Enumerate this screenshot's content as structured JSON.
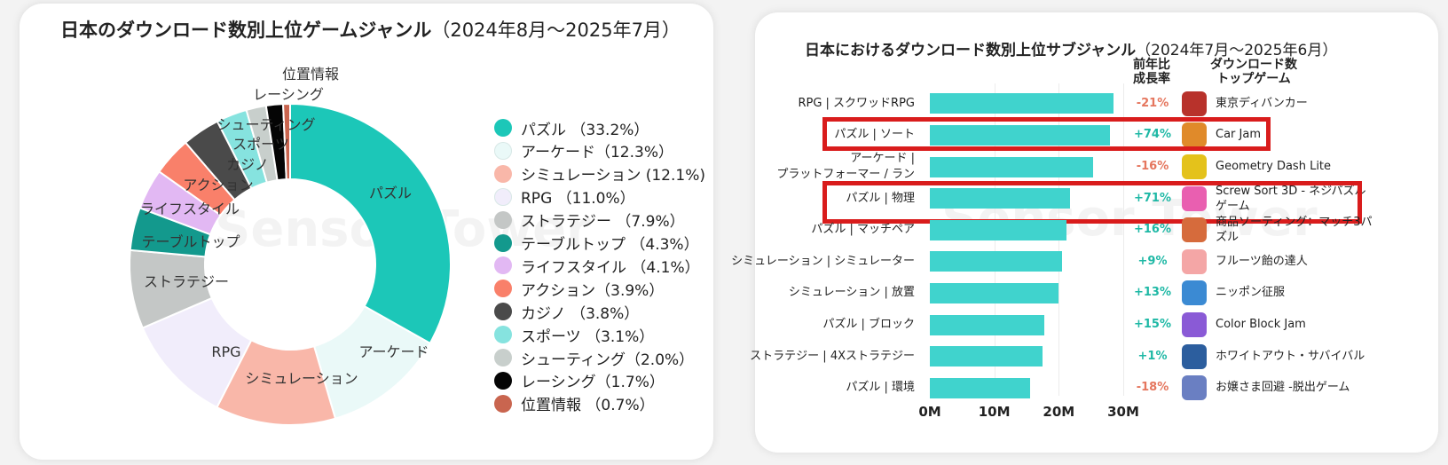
{
  "left_chart": {
    "title": "日本のダウンロード数別上位ゲームジャンル",
    "subtitle": "（2024年8月～2025年7月）",
    "watermark": "Sensor Tower"
  },
  "right_chart": {
    "title": "日本におけるダウンロード数別上位サブジャンル",
    "subtitle": "（2024年7月～2025年6月）",
    "watermark": "Sensor Tower",
    "col_growth": "前年比\n成長率",
    "col_game": "ダウンロード数\nトップゲーム"
  },
  "chart_data": [
    {
      "type": "pie",
      "donut": true,
      "title": "日本のダウンロード数別上位ゲームジャンル（2024年8月～2025年7月）",
      "legend_position": "right",
      "slices": [
        {
          "name": "パズル",
          "value": 33.2,
          "legend": "パズル （33.2%）",
          "color": "#1cc7b8",
          "label": "パズル"
        },
        {
          "name": "アーケード",
          "value": 12.3,
          "legend": "アーケード（12.3%）",
          "color": "#eaf9f8",
          "label": "アーケード"
        },
        {
          "name": "シミュレーション",
          "value": 12.1,
          "legend": "シミュレーション (12.1%)",
          "color": "#f9b7a9",
          "label": "シミュレーション"
        },
        {
          "name": "RPG",
          "value": 11.0,
          "legend": "RPG （11.0%）",
          "color": "#f1edfb",
          "label": "RPG"
        },
        {
          "name": "ストラテジー",
          "value": 7.9,
          "legend": "ストラテジー （7.9%）",
          "color": "#c4c7c6",
          "label": "ストラテジー"
        },
        {
          "name": "テーブルトップ",
          "value": 4.3,
          "legend": "テーブルトップ （4.3%）",
          "color": "#13998d",
          "label": "テーブルトップ"
        },
        {
          "name": "ライフスタイル",
          "value": 4.1,
          "legend": "ライフスタイル （4.1%）",
          "color": "#e2b8f3",
          "label": "ライフスタイル"
        },
        {
          "name": "アクション",
          "value": 3.9,
          "legend": "アクション（3.9%）",
          "color": "#f9806a",
          "label": "アクション"
        },
        {
          "name": "カジノ",
          "value": 3.8,
          "legend": "カジノ （3.8%）",
          "color": "#4a4a4a",
          "label": "カジノ"
        },
        {
          "name": "スポーツ",
          "value": 3.1,
          "legend": "スポーツ （3.1%）",
          "color": "#86e3df",
          "label": "スポーツ"
        },
        {
          "name": "シューティング",
          "value": 2.0,
          "legend": "シューティング（2.0%）",
          "color": "#c8cfcc",
          "label": "シューティング"
        },
        {
          "name": "レーシング",
          "value": 1.7,
          "legend": "レーシング（1.7%）",
          "color": "#050505",
          "label": "レーシング"
        },
        {
          "name": "位置情報",
          "value": 0.7,
          "legend": "位置情報 （0.7%）",
          "color": "#c9654f",
          "label": "位置情報"
        }
      ]
    },
    {
      "type": "bar",
      "orientation": "horizontal",
      "title": "日本におけるダウンロード数別上位サブジャンル（2024年7月～2025年6月）",
      "xlim": [
        0,
        30
      ],
      "x_ticks": [
        "0M",
        "10M",
        "20M",
        "30M"
      ],
      "grid": true,
      "bar_color": "#40d3cd",
      "positive_color": "#1eb8a5",
      "negative_color": "#e5765e",
      "highlight_color": "#d91c1c",
      "rows": [
        {
          "label": "RPG | スクワッドRPG",
          "value": 28.5,
          "growth": "-21%",
          "positive": false,
          "game": "東京ディバンカー",
          "icon_color": "#b8322b",
          "highlight": false
        },
        {
          "label": "パズル | ソート",
          "value": 28.0,
          "growth": "+74%",
          "positive": true,
          "game": "Car Jam",
          "icon_color": "#e08a2a",
          "highlight": true
        },
        {
          "label": "アーケード |\nプラットフォーマー / ラン",
          "value": 25.3,
          "growth": "-16%",
          "positive": false,
          "game": "Geometry Dash Lite",
          "icon_color": "#e4c21b",
          "highlight": false
        },
        {
          "label": "パズル | 物理",
          "value": 21.8,
          "growth": "+71%",
          "positive": true,
          "game": "Screw Sort 3D - ネジパズル\nゲーム",
          "icon_color": "#e95fb0",
          "highlight": true
        },
        {
          "label": "パズル | マッチペア",
          "value": 21.2,
          "growth": "+16%",
          "positive": true,
          "game": "商品ソーティング：マッチ3パ\nズル",
          "icon_color": "#d66b3c",
          "highlight": false
        },
        {
          "label": "シミュレーション | シミュレーター",
          "value": 20.5,
          "growth": "+9%",
          "positive": true,
          "game": "フルーツ飴の達人",
          "icon_color": "#f4a6a6",
          "highlight": false
        },
        {
          "label": "シミュレーション | 放置",
          "value": 20.0,
          "growth": "+13%",
          "positive": true,
          "game": "ニッポン征服",
          "icon_color": "#3b8ad3",
          "highlight": false
        },
        {
          "label": "パズル | ブロック",
          "value": 17.8,
          "growth": "+15%",
          "positive": true,
          "game": "Color Block Jam",
          "icon_color": "#8a5ad6",
          "highlight": false
        },
        {
          "label": "ストラテジー | 4Xストラテジー",
          "value": 17.5,
          "growth": "+1%",
          "positive": true,
          "game": "ホワイトアウト・サバイバル",
          "icon_color": "#2c5e9e",
          "highlight": false
        },
        {
          "label": "パズル | 環境",
          "value": 15.5,
          "growth": "-18%",
          "positive": false,
          "game": "お嬢さま回避 -脱出ゲーム",
          "icon_color": "#6a7fc2",
          "highlight": false
        }
      ]
    }
  ]
}
